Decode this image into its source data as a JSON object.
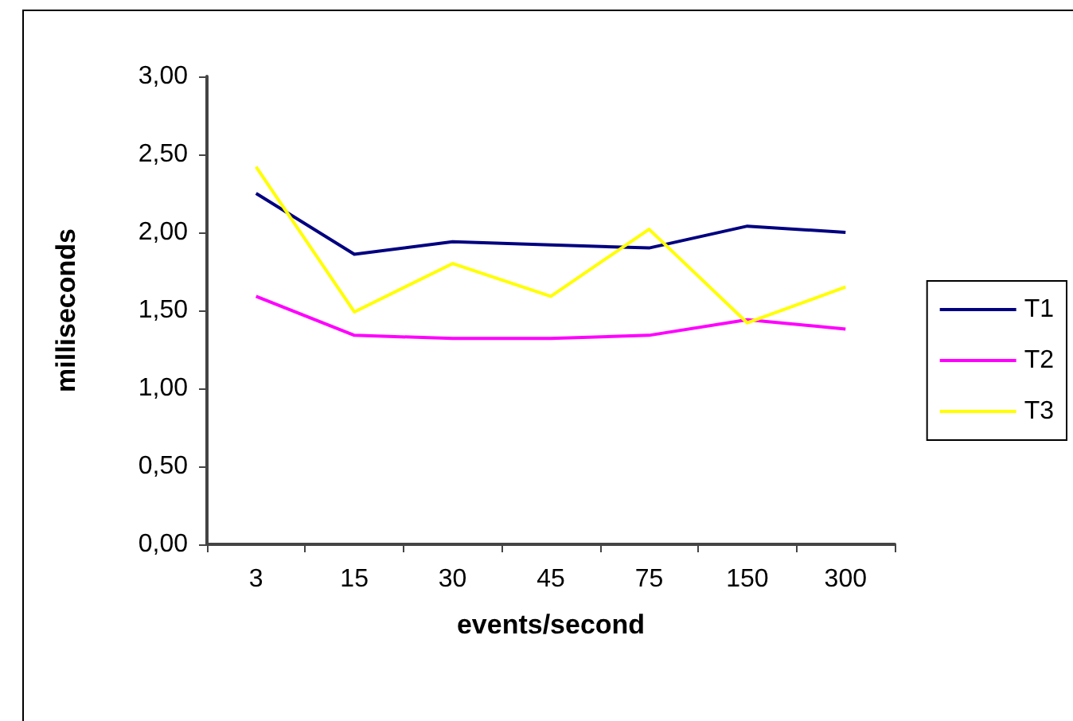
{
  "chart_data": {
    "type": "line",
    "xlabel": "events/second",
    "ylabel": "milliseconds",
    "categories": [
      "3",
      "15",
      "30",
      "45",
      "75",
      "150",
      "300"
    ],
    "series": [
      {
        "name": "T1",
        "color": "#000080",
        "values": [
          2.25,
          1.86,
          1.94,
          1.92,
          1.9,
          2.04,
          2.0
        ]
      },
      {
        "name": "T2",
        "color": "#ff00ff",
        "values": [
          1.59,
          1.34,
          1.32,
          1.32,
          1.34,
          1.44,
          1.38
        ]
      },
      {
        "name": "T3",
        "color": "#ffff00",
        "values": [
          2.42,
          1.49,
          1.8,
          1.59,
          2.02,
          1.42,
          1.65
        ]
      }
    ],
    "ylim": [
      0,
      3
    ],
    "yticks": [
      {
        "value": 0,
        "label": "0,00"
      },
      {
        "value": 0.5,
        "label": "0,50"
      },
      {
        "value": 1,
        "label": "1,00"
      },
      {
        "value": 1.5,
        "label": "1,50"
      },
      {
        "value": 2,
        "label": "2,00"
      },
      {
        "value": 2.5,
        "label": "2,50"
      },
      {
        "value": 3,
        "label": "3,00"
      }
    ],
    "grid": false,
    "legend": "right",
    "marker": "none",
    "line_style": "solid"
  }
}
